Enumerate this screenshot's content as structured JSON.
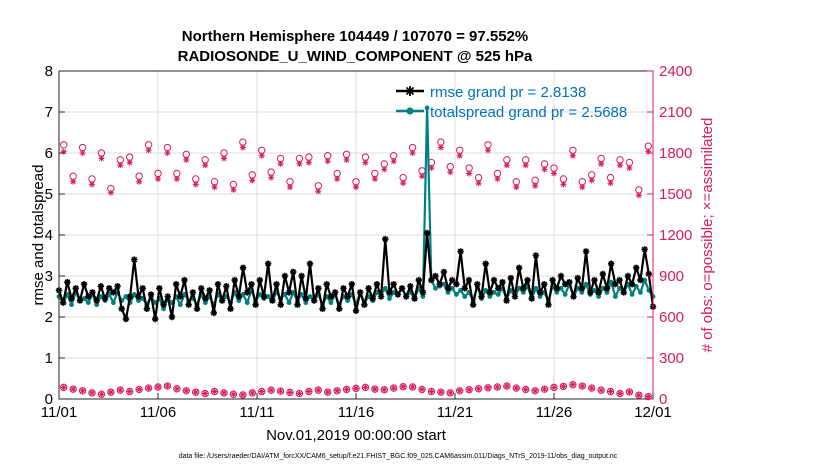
{
  "chart_data": {
    "type": "line",
    "title_line1": "Northern Hemisphere 104449 / 107070 = 97.552%",
    "title_line2": "RADIOSONDE_U_WIND_COMPONENT @ 525 hPa",
    "xlabel": "Nov.01,2019 00:00:00 start",
    "ylabel_left": "rmse and totalspread",
    "ylabel_right": "# of obs: o=possible; ×=assimilated",
    "footnote": "data file: /Users/raeder/DAI/ATM_forcXX/CAM6_setup/f.e21.FHIST_BGC.f09_025.CAM6assim.011/Diags_NTrS_2019-11/obs_diag_output.nc",
    "xlim": [
      0,
      30
    ],
    "x_ticks": [
      0,
      5,
      10,
      15,
      20,
      25,
      30
    ],
    "x_tick_labels": [
      "11/01",
      "11/06",
      "11/11",
      "11/16",
      "11/21",
      "11/26",
      "12/01"
    ],
    "ylim_left": [
      0,
      8
    ],
    "y_ticks_left": [
      "0",
      "1",
      "2",
      "3",
      "4",
      "5",
      "6",
      "7",
      "8"
    ],
    "ylim_right": [
      0,
      2400
    ],
    "y_ticks_right": [
      "0",
      "300",
      "600",
      "900",
      "1200",
      "1500",
      "1800",
      "2100",
      "2400"
    ],
    "colors": {
      "rmse": "#000000",
      "spread": "#008080",
      "obs": "#d81b60",
      "legend_text": "#0072bd"
    },
    "legend": [
      {
        "label": "rmse grand pr = 2.8138",
        "series": "rmse"
      },
      {
        "label": "totalspread grand pr = 2.5688",
        "series": "spread"
      }
    ],
    "series": [
      {
        "name": "rmse",
        "axis": "left",
        "values": [
          2.65,
          2.35,
          2.85,
          2.45,
          2.7,
          2.4,
          2.8,
          2.5,
          2.6,
          2.4,
          2.75,
          2.45,
          2.7,
          2.6,
          2.75,
          2.2,
          1.95,
          2.5,
          3.4,
          2.5,
          2.7,
          2.2,
          2.55,
          1.95,
          2.7,
          2.3,
          2.5,
          2.0,
          2.8,
          2.5,
          2.9,
          2.3,
          2.6,
          2.2,
          2.7,
          2.45,
          2.65,
          2.1,
          2.8,
          2.4,
          2.75,
          2.2,
          2.9,
          2.5,
          3.2,
          2.6,
          2.8,
          2.3,
          2.9,
          2.5,
          3.3,
          2.4,
          2.8,
          2.3,
          3.0,
          2.6,
          3.1,
          2.3,
          3.0,
          2.45,
          3.3,
          2.4,
          2.7,
          2.2,
          2.8,
          2.5,
          2.6,
          2.2,
          2.7,
          2.5,
          2.8,
          2.15,
          2.6,
          2.3,
          2.7,
          2.45,
          2.8,
          2.5,
          3.9,
          2.6,
          2.8,
          2.55,
          2.7,
          2.5,
          2.75,
          2.45,
          2.9,
          2.6,
          4.05,
          2.9,
          3.0,
          2.8,
          3.1,
          2.7,
          2.9,
          2.8,
          3.6,
          2.7,
          2.9,
          2.3,
          2.8,
          2.5,
          3.3,
          2.6,
          2.9,
          2.7,
          2.85,
          2.4,
          2.95,
          2.5,
          3.2,
          2.7,
          2.9,
          2.45,
          3.5,
          2.6,
          2.8,
          2.3,
          2.9,
          2.7,
          3.0,
          2.8,
          2.85,
          2.5,
          2.95,
          2.7,
          3.6,
          2.6,
          2.9,
          2.6,
          3.05,
          2.7,
          3.3,
          2.8,
          2.9,
          2.6,
          3.0,
          2.8,
          3.2,
          2.9,
          3.65,
          3.05,
          2.25
        ]
      },
      {
        "name": "totalspread",
        "axis": "left",
        "values": [
          2.5,
          2.35,
          2.55,
          2.3,
          2.6,
          2.4,
          2.45,
          2.35,
          2.55,
          2.3,
          2.5,
          2.4,
          2.55,
          2.35,
          2.6,
          2.4,
          2.5,
          2.35,
          2.55,
          2.4,
          2.45,
          2.3,
          2.5,
          2.35,
          2.45,
          2.2,
          2.45,
          2.35,
          2.5,
          2.3,
          2.55,
          2.4,
          2.45,
          2.3,
          2.55,
          2.35,
          2.5,
          2.3,
          2.55,
          2.4,
          2.5,
          2.35,
          2.6,
          2.4,
          2.55,
          2.35,
          2.65,
          2.4,
          2.55,
          2.45,
          2.5,
          2.4,
          2.6,
          2.45,
          2.55,
          2.35,
          2.6,
          2.4,
          2.55,
          2.35,
          2.5,
          2.4,
          2.55,
          2.3,
          2.5,
          2.35,
          2.55,
          2.3,
          2.5,
          2.4,
          2.55,
          2.3,
          2.6,
          2.35,
          2.5,
          2.4,
          2.6,
          2.55,
          2.7,
          2.45,
          2.6,
          2.55,
          2.7,
          2.5,
          2.6,
          2.45,
          2.7,
          2.5,
          7.1,
          2.9,
          2.7,
          2.75,
          2.8,
          2.6,
          2.7,
          2.55,
          2.65,
          2.5,
          2.6,
          2.4,
          2.75,
          2.45,
          2.65,
          2.5,
          2.6,
          2.55,
          2.7,
          2.45,
          2.65,
          2.5,
          2.7,
          2.6,
          2.75,
          2.45,
          2.7,
          2.5,
          2.6,
          2.4,
          2.75,
          2.6,
          2.7,
          2.55,
          2.8,
          2.5,
          2.7,
          2.6,
          2.8,
          2.55,
          2.65,
          2.5,
          2.7,
          2.6,
          2.85,
          2.5,
          2.7,
          2.6,
          2.8,
          2.55,
          2.75,
          2.6,
          2.9,
          2.65,
          2.5
        ]
      },
      {
        "name": "obs_possible",
        "axis": "right",
        "values": [
          1860,
          1630,
          1840,
          1610,
          1800,
          1540,
          1750,
          1770,
          1630,
          1860,
          1650,
          1840,
          1650,
          1790,
          1610,
          1750,
          1590,
          1800,
          1570,
          1880,
          1640,
          1820,
          1660,
          1760,
          1590,
          1760,
          1770,
          1560,
          1780,
          1650,
          1790,
          1590,
          1770,
          1650,
          1720,
          1780,
          1620,
          1840,
          1670,
          1730,
          1880,
          1700,
          1820,
          1690,
          1620,
          1860,
          1650,
          1750,
          1590,
          1750,
          1600,
          1720,
          1690,
          1610,
          1820,
          1590,
          1640,
          1760,
          1620,
          1750,
          1730,
          1530,
          1850
        ]
      },
      {
        "name": "obs_assimilated",
        "axis": "right",
        "values": [
          1810,
          1590,
          1800,
          1570,
          1760,
          1510,
          1710,
          1730,
          1590,
          1820,
          1610,
          1800,
          1610,
          1750,
          1570,
          1710,
          1550,
          1760,
          1530,
          1840,
          1600,
          1780,
          1620,
          1720,
          1550,
          1720,
          1730,
          1520,
          1740,
          1610,
          1750,
          1550,
          1730,
          1610,
          1680,
          1740,
          1580,
          1800,
          1630,
          1690,
          1840,
          1660,
          1780,
          1650,
          1580,
          1820,
          1610,
          1710,
          1550,
          1710,
          1560,
          1680,
          1650,
          1570,
          1780,
          1550,
          1600,
          1720,
          1580,
          1710,
          1690,
          1490,
          1810
        ]
      },
      {
        "name": "obs_bottom",
        "axis": "right",
        "values": [
          85,
          72,
          60,
          45,
          35,
          50,
          65,
          55,
          70,
          80,
          88,
          95,
          75,
          60,
          50,
          40,
          55,
          45,
          35,
          30,
          45,
          55,
          65,
          58,
          48,
          40,
          55,
          65,
          50,
          60,
          70,
          78,
          85,
          72,
          68,
          80,
          90,
          88,
          70,
          55,
          50,
          45,
          60,
          68,
          75,
          82,
          88,
          95,
          80,
          70,
          60,
          72,
          85,
          92,
          105,
          95,
          80,
          65,
          55,
          40,
          52,
          28,
          18
        ]
      }
    ]
  }
}
